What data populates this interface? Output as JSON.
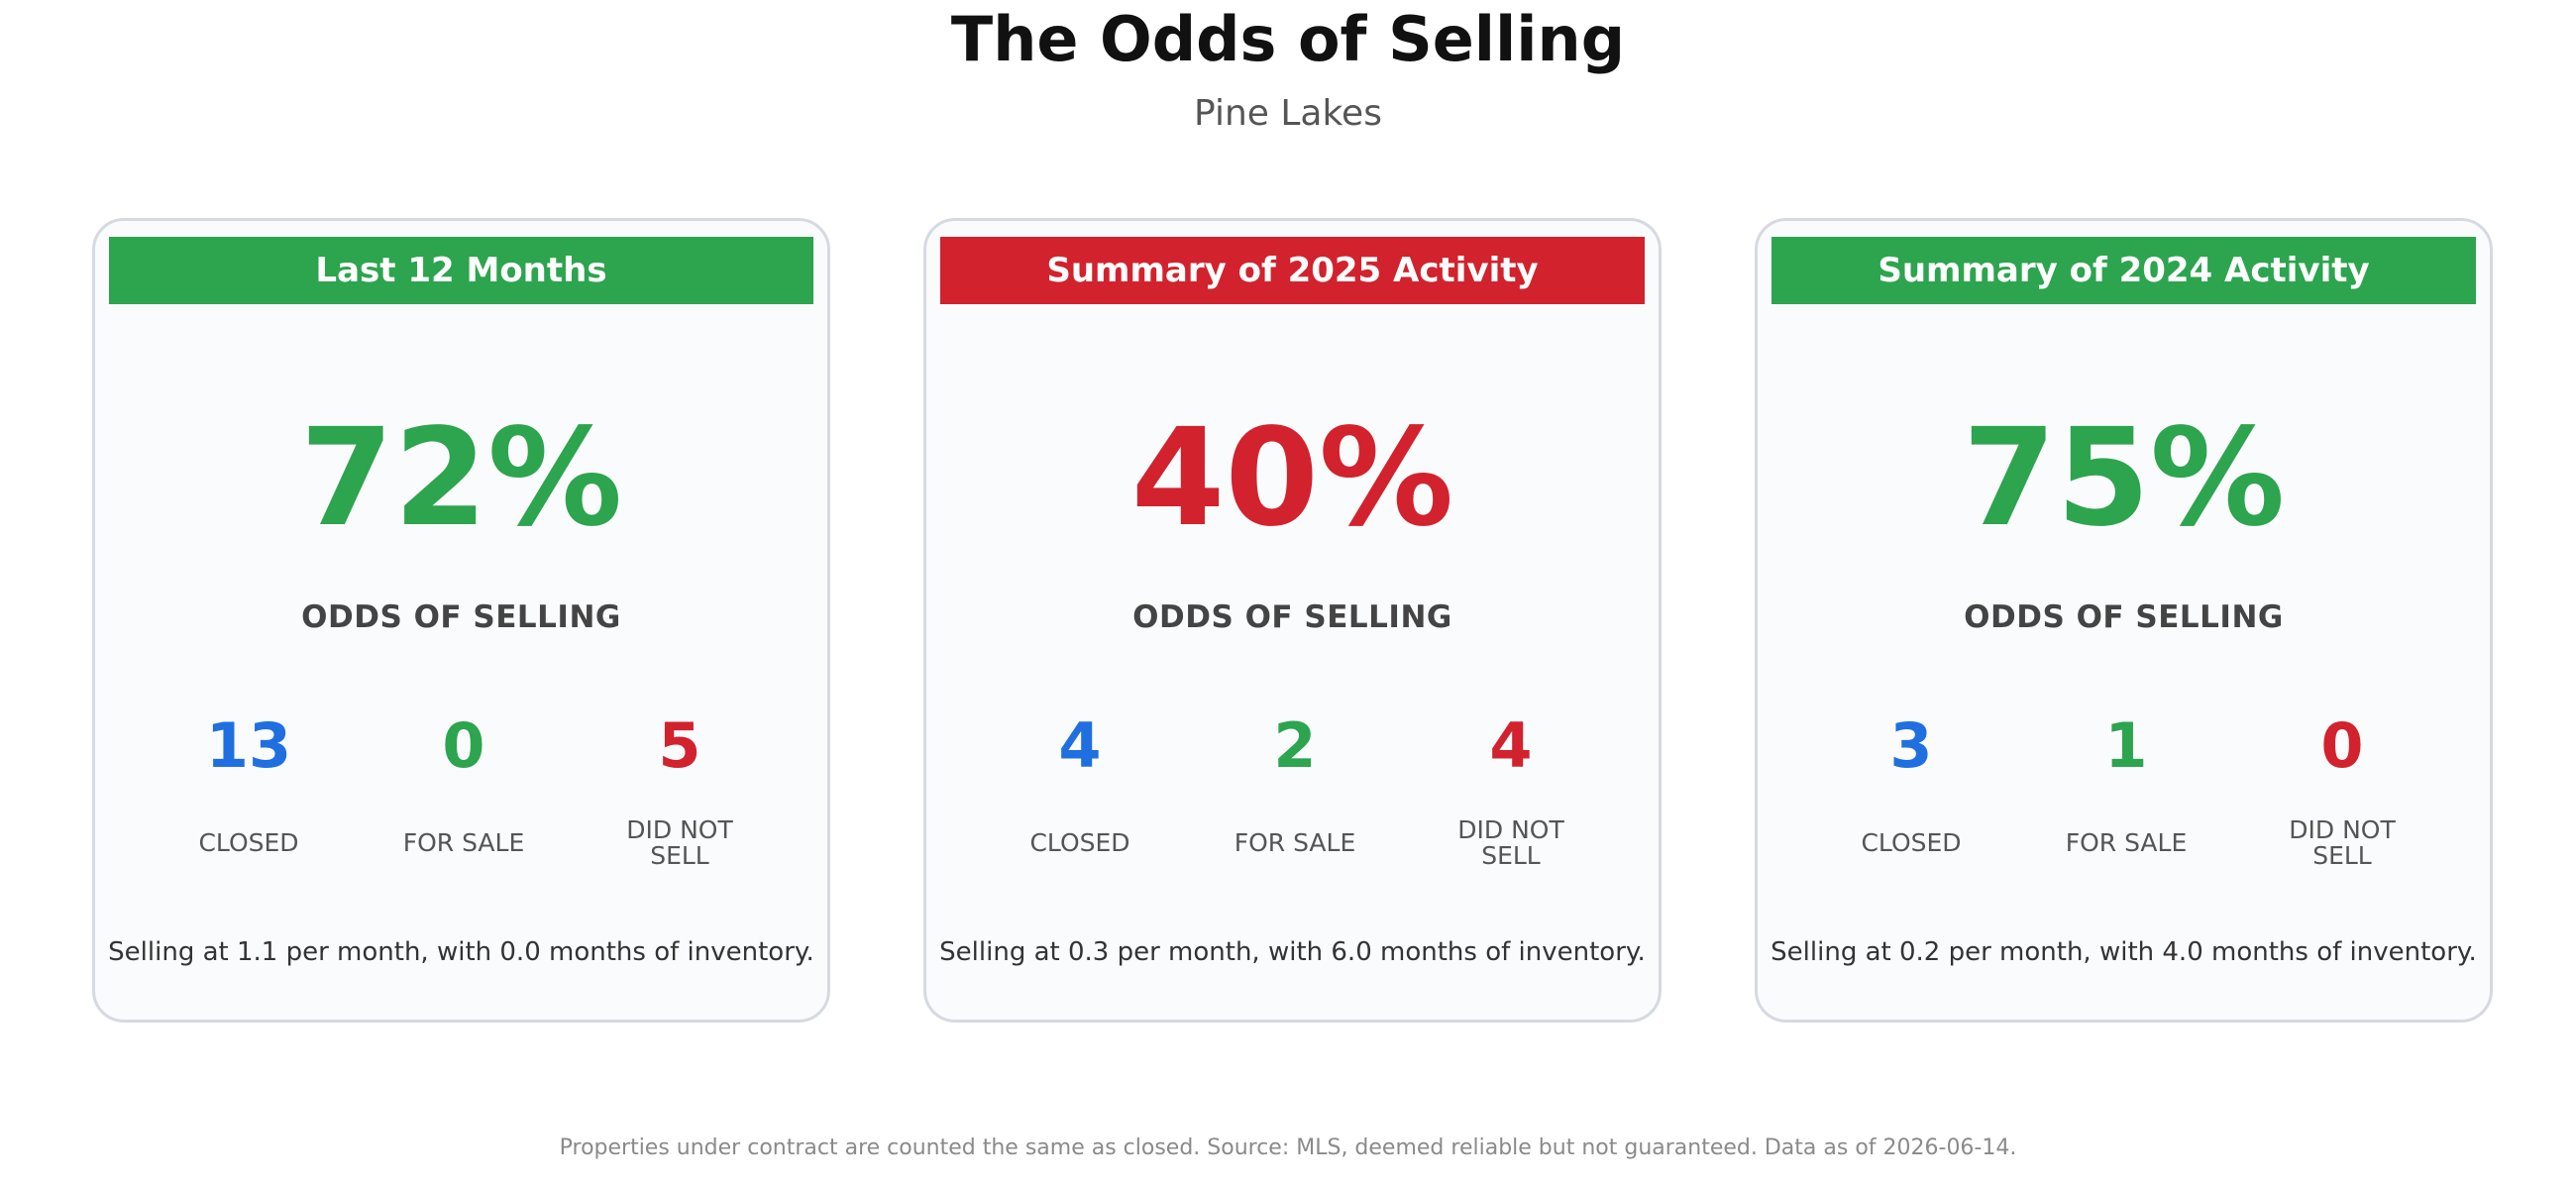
{
  "header": {
    "title": "The Odds of Selling",
    "subtitle": "Pine Lakes"
  },
  "colors": {
    "green": "#2da44e",
    "red": "#d2222d",
    "blue": "#1f6fe0"
  },
  "chart_data": {
    "type": "table",
    "panels": [
      {
        "header": "Last 12 Months",
        "header_color": "#2da44e",
        "odds_value": "72%",
        "odds_color": "#2da44e",
        "odds_label": "ODDS OF SELLING",
        "stats": [
          {
            "value": "13",
            "label": "CLOSED",
            "color": "#1f6fe0"
          },
          {
            "value": "0",
            "label": "FOR SALE",
            "color": "#2da44e"
          },
          {
            "value": "5",
            "label": "DID NOT\nSELL",
            "color": "#d2222d"
          }
        ],
        "summary": "Selling at 1.1 per month, with 0.0 months of inventory."
      },
      {
        "header": "Summary of 2025 Activity",
        "header_color": "#d2222d",
        "odds_value": "40%",
        "odds_color": "#d2222d",
        "odds_label": "ODDS OF SELLING",
        "stats": [
          {
            "value": "4",
            "label": "CLOSED",
            "color": "#1f6fe0"
          },
          {
            "value": "2",
            "label": "FOR SALE",
            "color": "#2da44e"
          },
          {
            "value": "4",
            "label": "DID NOT\nSELL",
            "color": "#d2222d"
          }
        ],
        "summary": "Selling at 0.3 per month, with 6.0 months of inventory."
      },
      {
        "header": "Summary of 2024 Activity",
        "header_color": "#2da44e",
        "odds_value": "75%",
        "odds_color": "#2da44e",
        "odds_label": "ODDS OF SELLING",
        "stats": [
          {
            "value": "3",
            "label": "CLOSED",
            "color": "#1f6fe0"
          },
          {
            "value": "1",
            "label": "FOR SALE",
            "color": "#2da44e"
          },
          {
            "value": "0",
            "label": "DID NOT\nSELL",
            "color": "#d2222d"
          }
        ],
        "summary": "Selling at 0.2 per month, with 4.0 months of inventory."
      }
    ]
  },
  "footer": {
    "note": "Properties under contract are counted the same as closed. Source: MLS, deemed reliable but not guaranteed. Data as of 2026-06-14."
  }
}
